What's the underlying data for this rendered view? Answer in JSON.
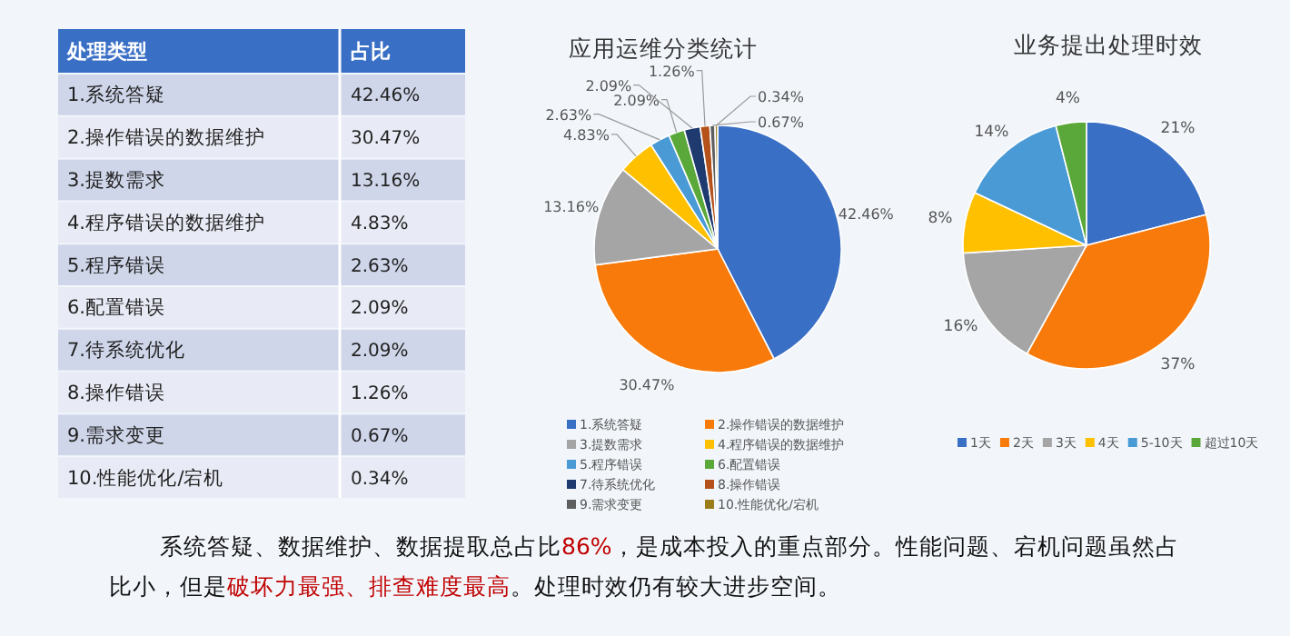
{
  "chart_data": [
    {
      "type": "other",
      "xlabel": "处理类型",
      "ylabel": "占比",
      "categories": [
        "1.系统答疑",
        "2.操作错误的数据维护",
        "3.提数需求",
        "4.程序错误的数据维护",
        "5.程序错误",
        "6.配置错误",
        "7.待系统优化",
        "8.操作错误",
        "9.需求变更",
        "10.性能优化/宕机"
      ],
      "value_labels": [
        "42.46%",
        "30.47%",
        "13.16%",
        "4.83%",
        "2.63%",
        "2.09%",
        "2.09%",
        "1.26%",
        "0.67%",
        "0.34%"
      ],
      "colors": [
        "#cfd6ea",
        "#e8ebf5",
        "#cfd6ea",
        "#e8ebf5",
        "#cfd6ea",
        "#e8ebf5",
        "#cfd6ea",
        "#e8ebf5",
        "#cfd6ea",
        "#e8ebf5"
      ]
    },
    {
      "type": "pie",
      "title": "应用运维分类统计",
      "categories": [
        "1.系统答疑",
        "2.操作错误的数据维护",
        "3.提数需求",
        "4.程序错误的数据维护",
        "5.程序错误",
        "6.配置错误",
        "7.待系统优化",
        "8.操作错误",
        "9.需求变更",
        "10.性能优化/宕机"
      ],
      "values": [
        42.46,
        30.47,
        13.16,
        4.83,
        2.63,
        2.09,
        2.09,
        1.26,
        0.67,
        0.34
      ],
      "value_labels": [
        "42.46%",
        "30.47%",
        "13.16%",
        "4.83%",
        "2.63%",
        "2.09%",
        "2.09%",
        "1.26%",
        "0.67%",
        "0.34%"
      ],
      "colors": [
        "#3a6fc6",
        "#f77a0a",
        "#a5a5a5",
        "#ffc000",
        "#4a9ad6",
        "#5aa83a",
        "#1f3a6e",
        "#b5521b",
        "#5f5f5f",
        "#9a7d1a"
      ],
      "legend": "bottom"
    },
    {
      "type": "pie",
      "title": "业务提出处理时效",
      "categories": [
        "1天",
        "2天",
        "3天",
        "4天",
        "5-10天",
        "超过10天"
      ],
      "values": [
        21,
        37,
        16,
        8,
        14,
        4
      ],
      "value_labels": [
        "21%",
        "37%",
        "16%",
        "8%",
        "14%",
        "4%"
      ],
      "colors": [
        "#3a6fc6",
        "#f77a0a",
        "#a5a5a5",
        "#ffc000",
        "#4a9ad6",
        "#5aa83a"
      ],
      "legend": "bottom"
    },
    {
      "type": "other",
      "annotations": [
        "系统答疑、数据维护、数据提取总占比",
        "86%",
        "，是成本投入的重点部分。性能问题、宕机问题虽然占比小，但是",
        "破坏力最强、排查难度最高",
        "。处理时效仍有较大进步空间。"
      ]
    }
  ]
}
